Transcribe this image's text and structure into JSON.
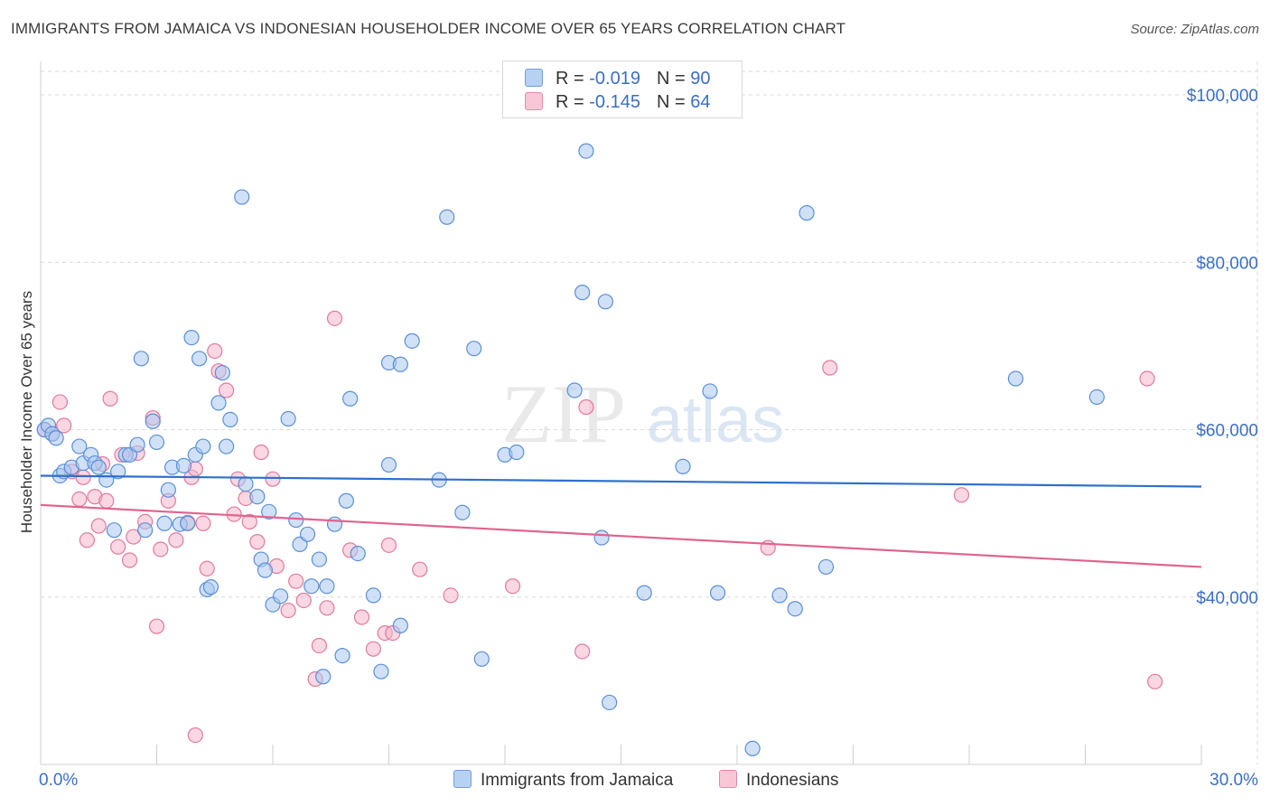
{
  "header": {
    "title": "IMMIGRANTS FROM JAMAICA VS INDONESIAN HOUSEHOLDER INCOME OVER 65 YEARS CORRELATION CHART",
    "source": "Source: ZipAtlas.com"
  },
  "legend": {
    "series1": {
      "r_label": "R = ",
      "r_value": "-0.019",
      "n_label": "N = ",
      "n_value": "90"
    },
    "series2": {
      "r_label": "R = ",
      "r_value": "-0.145",
      "n_label": "N = ",
      "n_value": "64"
    }
  },
  "bottom_legend": {
    "series1": "Immigrants from Jamaica",
    "series2": "Indonesians"
  },
  "watermark": {
    "zip": "ZIP",
    "atlas": "atlas"
  },
  "colors": {
    "blue_fill": "#a9c8f0",
    "blue_stroke": "#5b8fd6",
    "blue_line": "#2f6fcc",
    "pink_fill": "#f6b6cb",
    "pink_stroke": "#e07aa0",
    "pink_line": "#e0648f",
    "axis_label": "#3a6fc4",
    "grid": "#d9d9d9"
  },
  "chart_data": {
    "type": "scatter",
    "title": "IMMIGRANTS FROM JAMAICA VS INDONESIAN HOUSEHOLDER INCOME OVER 65 YEARS CORRELATION CHART",
    "xlabel": "",
    "ylabel": "Householder Income Over 65 years",
    "xlim": [
      0,
      30
    ],
    "ylim": [
      20000,
      104000
    ],
    "x_tick_labels": [
      "0.0%",
      "30.0%"
    ],
    "y_ticks": [
      40000,
      60000,
      80000,
      100000
    ],
    "y_tick_labels": [
      "$40,000",
      "$60,000",
      "$80,000",
      "$100,000"
    ],
    "grid": true,
    "series": [
      {
        "name": "Immigrants from Jamaica",
        "r": -0.019,
        "n": 90,
        "trend": {
          "x": [
            0,
            30
          ],
          "y": [
            54500,
            53200
          ]
        },
        "points": [
          [
            0.1,
            60000
          ],
          [
            0.2,
            60500
          ],
          [
            0.3,
            59500
          ],
          [
            0.5,
            54500
          ],
          [
            0.6,
            55000
          ],
          [
            0.8,
            55500
          ],
          [
            1.0,
            58000
          ],
          [
            1.1,
            56000
          ],
          [
            1.3,
            57000
          ],
          [
            1.4,
            56000
          ],
          [
            1.5,
            55500
          ],
          [
            1.7,
            54000
          ],
          [
            1.9,
            48000
          ],
          [
            2.0,
            55000
          ],
          [
            2.2,
            57000
          ],
          [
            2.3,
            57000
          ],
          [
            2.5,
            58200
          ],
          [
            2.6,
            68500
          ],
          [
            2.7,
            48000
          ],
          [
            2.9,
            61000
          ],
          [
            3.0,
            58500
          ],
          [
            3.2,
            48800
          ],
          [
            3.3,
            52800
          ],
          [
            3.4,
            55500
          ],
          [
            3.6,
            48700
          ],
          [
            3.7,
            55700
          ],
          [
            3.8,
            48800
          ],
          [
            3.9,
            71000
          ],
          [
            4.0,
            57000
          ],
          [
            4.1,
            68500
          ],
          [
            4.2,
            58000
          ],
          [
            4.3,
            40900
          ],
          [
            4.4,
            41200
          ],
          [
            4.6,
            63200
          ],
          [
            4.7,
            66800
          ],
          [
            4.8,
            58000
          ],
          [
            4.9,
            61200
          ],
          [
            5.2,
            87800
          ],
          [
            5.3,
            53500
          ],
          [
            5.6,
            52000
          ],
          [
            5.7,
            44500
          ],
          [
            5.8,
            43200
          ],
          [
            5.9,
            50200
          ],
          [
            6.0,
            39100
          ],
          [
            6.2,
            40100
          ],
          [
            6.4,
            61300
          ],
          [
            6.6,
            49200
          ],
          [
            6.7,
            46300
          ],
          [
            6.9,
            47500
          ],
          [
            7.0,
            41300
          ],
          [
            7.2,
            44500
          ],
          [
            7.3,
            30500
          ],
          [
            7.4,
            41300
          ],
          [
            7.6,
            48700
          ],
          [
            7.8,
            33000
          ],
          [
            7.9,
            51500
          ],
          [
            8.0,
            63700
          ],
          [
            8.2,
            45200
          ],
          [
            8.6,
            40200
          ],
          [
            8.8,
            31100
          ],
          [
            9.0,
            55800
          ],
          [
            9.3,
            36600
          ],
          [
            9.0,
            68000
          ],
          [
            9.3,
            67800
          ],
          [
            9.6,
            70600
          ],
          [
            10.3,
            54000
          ],
          [
            10.5,
            85400
          ],
          [
            10.9,
            50100
          ],
          [
            11.2,
            69700
          ],
          [
            11.4,
            32600
          ],
          [
            12.0,
            57000
          ],
          [
            12.3,
            57300
          ],
          [
            13.8,
            64700
          ],
          [
            14.0,
            76400
          ],
          [
            14.1,
            93300
          ],
          [
            14.5,
            47100
          ],
          [
            14.6,
            75300
          ],
          [
            14.7,
            27400
          ],
          [
            15.6,
            40500
          ],
          [
            16.6,
            55600
          ],
          [
            17.3,
            64600
          ],
          [
            17.5,
            40500
          ],
          [
            18.4,
            21900
          ],
          [
            19.1,
            40200
          ],
          [
            19.5,
            38600
          ],
          [
            19.8,
            85900
          ],
          [
            20.3,
            43600
          ],
          [
            25.2,
            66100
          ],
          [
            27.3,
            63900
          ],
          [
            0.4,
            59000
          ]
        ]
      },
      {
        "name": "Indonesians",
        "r": -0.145,
        "n": 64,
        "trend": {
          "x": [
            0,
            30
          ],
          "y": [
            51000,
            43600
          ]
        },
        "points": [
          [
            0.1,
            60000
          ],
          [
            0.3,
            59500
          ],
          [
            0.5,
            63300
          ],
          [
            0.6,
            60500
          ],
          [
            0.8,
            55000
          ],
          [
            1.0,
            51700
          ],
          [
            1.1,
            54300
          ],
          [
            1.2,
            46800
          ],
          [
            1.4,
            52000
          ],
          [
            1.5,
            48500
          ],
          [
            1.6,
            55900
          ],
          [
            1.7,
            51500
          ],
          [
            1.8,
            63700
          ],
          [
            2.0,
            46000
          ],
          [
            2.1,
            57000
          ],
          [
            2.3,
            44400
          ],
          [
            2.4,
            47200
          ],
          [
            2.5,
            57200
          ],
          [
            2.7,
            49000
          ],
          [
            2.9,
            61400
          ],
          [
            3.0,
            36500
          ],
          [
            3.1,
            45700
          ],
          [
            3.3,
            51500
          ],
          [
            3.5,
            46800
          ],
          [
            3.8,
            48900
          ],
          [
            3.9,
            54300
          ],
          [
            4.0,
            55300
          ],
          [
            4.2,
            48800
          ],
          [
            4.3,
            43400
          ],
          [
            4.5,
            69400
          ],
          [
            4.6,
            67000
          ],
          [
            4.8,
            64700
          ],
          [
            5.0,
            49900
          ],
          [
            5.1,
            54100
          ],
          [
            5.3,
            51800
          ],
          [
            5.6,
            46600
          ],
          [
            5.7,
            57300
          ],
          [
            6.0,
            54100
          ],
          [
            6.1,
            43700
          ],
          [
            6.4,
            38400
          ],
          [
            6.6,
            41900
          ],
          [
            6.8,
            39600
          ],
          [
            7.1,
            30200
          ],
          [
            7.2,
            34200
          ],
          [
            7.4,
            38700
          ],
          [
            7.6,
            73300
          ],
          [
            8.0,
            45600
          ],
          [
            8.3,
            37600
          ],
          [
            8.6,
            33800
          ],
          [
            8.9,
            35700
          ],
          [
            9.0,
            46200
          ],
          [
            9.1,
            35700
          ],
          [
            9.8,
            43300
          ],
          [
            10.6,
            40200
          ],
          [
            12.2,
            41300
          ],
          [
            14.0,
            33500
          ],
          [
            14.1,
            62700
          ],
          [
            18.8,
            45900
          ],
          [
            20.4,
            67400
          ],
          [
            23.8,
            52200
          ],
          [
            28.6,
            66100
          ],
          [
            28.8,
            29900
          ],
          [
            4.0,
            23500
          ],
          [
            5.4,
            49000
          ]
        ]
      }
    ]
  }
}
